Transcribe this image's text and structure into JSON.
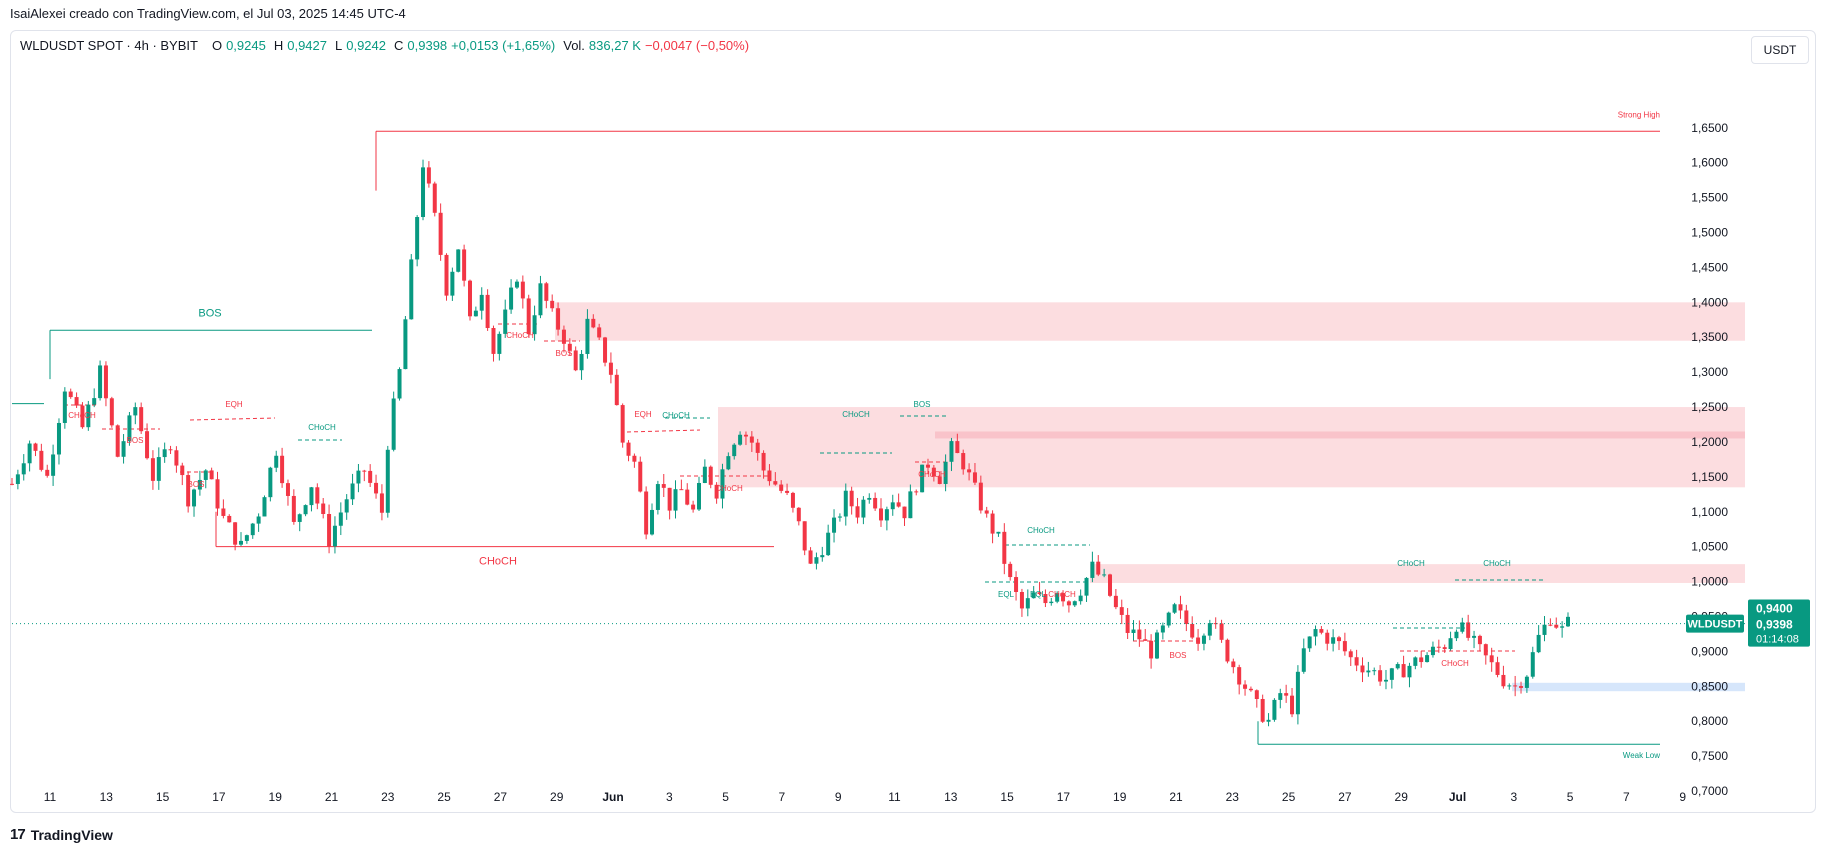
{
  "header": {
    "attribution": "IsaiAlexei creado con TradingView.com, el Jul 03, 2025 14:45 UTC-4"
  },
  "legend": {
    "symbol": "WLDUSDT SPOT · 4h · BYBIT",
    "o_label": "O",
    "o_value": "0,9245",
    "h_label": "H",
    "h_value": "0,9427",
    "l_label": "L",
    "l_value": "0,9242",
    "c_label": "C",
    "c_value": "0,9398",
    "change": "+0,0153 (+1,65%)",
    "vol_label": "Vol.",
    "vol_value": "836,27 K",
    "vol_change": "−0,0047 (−0,50%)"
  },
  "currency_button": "USDT",
  "footer": {
    "logo_text": "TradingView",
    "logo_mark": "17"
  },
  "colors": {
    "up": "#089981",
    "down": "#f23645",
    "zone_supply": "#fcdde0",
    "zone_demand": "#d6e6fb",
    "grid_text": "#131722"
  },
  "chart_data": {
    "type": "candlestick",
    "symbol": "WLDUSDT",
    "timeframe": "4h",
    "yaxis": {
      "range": [
        0.69,
        1.75
      ],
      "ticks": [
        "0,7000",
        "0,7500",
        "0,8000",
        "0,8500",
        "0,9000",
        "0,9500",
        "1,0000",
        "1,0500",
        "1,1000",
        "1,1500",
        "1,2000",
        "1,2500",
        "1,3000",
        "1,3500",
        "1,4000",
        "1,4500",
        "1,5000",
        "1,5500",
        "1,6000",
        "1,6500"
      ]
    },
    "xaxis": {
      "ticks": [
        "11",
        "13",
        "15",
        "17",
        "19",
        "21",
        "23",
        "25",
        "27",
        "29",
        "Jun",
        "3",
        "5",
        "7",
        "9",
        "11",
        "13",
        "15",
        "17",
        "19",
        "21",
        "23",
        "25",
        "27",
        "29",
        "Jul",
        "3",
        "5",
        "7",
        "9"
      ]
    },
    "price_labels": {
      "current_name": "WLDUSDT",
      "current_price": "0,9398",
      "countdown": "01:14:08",
      "high_marker": "0,9400"
    },
    "close_path": [
      [
        0,
        1.14
      ],
      [
        3,
        1.2
      ],
      [
        6,
        1.15
      ],
      [
        9,
        1.28
      ],
      [
        12,
        1.22
      ],
      [
        15,
        1.3
      ],
      [
        18,
        1.18
      ],
      [
        21,
        1.25
      ],
      [
        24,
        1.15
      ],
      [
        27,
        1.2
      ],
      [
        30,
        1.12
      ],
      [
        33,
        1.16
      ],
      [
        36,
        1.09
      ],
      [
        39,
        1.05
      ],
      [
        42,
        1.1
      ],
      [
        45,
        1.19
      ],
      [
        48,
        1.08
      ],
      [
        51,
        1.14
      ],
      [
        54,
        1.06
      ],
      [
        57,
        1.12
      ],
      [
        60,
        1.16
      ],
      [
        63,
        1.1
      ],
      [
        64,
        1.2
      ],
      [
        66,
        1.3
      ],
      [
        68,
        1.45
      ],
      [
        70,
        1.6
      ],
      [
        72,
        1.52
      ],
      [
        74,
        1.42
      ],
      [
        76,
        1.48
      ],
      [
        78,
        1.37
      ],
      [
        80,
        1.42
      ],
      [
        82,
        1.33
      ],
      [
        84,
        1.38
      ],
      [
        86,
        1.44
      ],
      [
        88,
        1.36
      ],
      [
        90,
        1.42
      ],
      [
        92,
        1.38
      ],
      [
        94,
        1.35
      ],
      [
        96,
        1.3
      ],
      [
        98,
        1.37
      ],
      [
        100,
        1.34
      ],
      [
        102,
        1.3
      ],
      [
        104,
        1.2
      ],
      [
        106,
        1.17
      ],
      [
        108,
        1.08
      ],
      [
        110,
        1.15
      ],
      [
        112,
        1.11
      ],
      [
        114,
        1.13
      ],
      [
        116,
        1.1
      ],
      [
        118,
        1.16
      ],
      [
        120,
        1.13
      ],
      [
        122,
        1.19
      ],
      [
        124,
        1.22
      ],
      [
        126,
        1.2
      ],
      [
        128,
        1.16
      ],
      [
        130,
        1.14
      ],
      [
        132,
        1.12
      ],
      [
        134,
        1.08
      ],
      [
        136,
        1.02
      ],
      [
        138,
        1.05
      ],
      [
        140,
        1.08
      ],
      [
        142,
        1.12
      ],
      [
        144,
        1.1
      ],
      [
        146,
        1.13
      ],
      [
        148,
        1.1
      ],
      [
        150,
        1.12
      ],
      [
        152,
        1.1
      ],
      [
        154,
        1.14
      ],
      [
        156,
        1.17
      ],
      [
        158,
        1.15
      ],
      [
        160,
        1.19
      ],
      [
        162,
        1.17
      ],
      [
        164,
        1.13
      ],
      [
        166,
        1.09
      ],
      [
        168,
        1.06
      ],
      [
        170,
        1.0
      ],
      [
        172,
        0.96
      ],
      [
        174,
        0.98
      ],
      [
        176,
        0.97
      ],
      [
        178,
        0.99
      ],
      [
        180,
        0.97
      ],
      [
        182,
        0.99
      ],
      [
        184,
        1.02
      ],
      [
        186,
        1.0
      ],
      [
        188,
        0.96
      ],
      [
        190,
        0.93
      ],
      [
        192,
        0.92
      ],
      [
        194,
        0.9
      ],
      [
        196,
        0.93
      ],
      [
        198,
        0.96
      ],
      [
        200,
        0.94
      ],
      [
        202,
        0.92
      ],
      [
        204,
        0.95
      ],
      [
        206,
        0.91
      ],
      [
        208,
        0.88
      ],
      [
        210,
        0.85
      ],
      [
        212,
        0.82
      ],
      [
        214,
        0.8
      ],
      [
        216,
        0.84
      ],
      [
        218,
        0.82
      ],
      [
        220,
        0.9
      ],
      [
        222,
        0.93
      ],
      [
        224,
        0.92
      ],
      [
        226,
        0.91
      ],
      [
        228,
        0.89
      ],
      [
        230,
        0.88
      ],
      [
        232,
        0.87
      ],
      [
        234,
        0.86
      ],
      [
        236,
        0.87
      ],
      [
        238,
        0.88
      ],
      [
        240,
        0.89
      ],
      [
        242,
        0.9
      ],
      [
        244,
        0.91
      ],
      [
        246,
        0.94
      ],
      [
        248,
        0.92
      ],
      [
        250,
        0.9
      ],
      [
        252,
        0.88
      ],
      [
        254,
        0.86
      ],
      [
        256,
        0.85
      ],
      [
        258,
        0.87
      ],
      [
        260,
        0.92
      ],
      [
        262,
        0.95
      ],
      [
        264,
        0.93
      ],
      [
        265,
        0.94
      ]
    ],
    "horizontal_levels": [
      {
        "label": "Strong High",
        "price": 1.645,
        "color": "#f23645"
      },
      {
        "label": "Weak Low",
        "price": 0.767,
        "color": "#089981"
      },
      {
        "label": "BOS",
        "price": 1.36,
        "color": "#089981"
      },
      {
        "label": "CHoCH",
        "price": 1.05,
        "color": "#f23645"
      }
    ],
    "zones": [
      {
        "top": 1.4,
        "bottom": 1.345,
        "kind": "supply"
      },
      {
        "top": 1.25,
        "bottom": 1.135,
        "kind": "supply"
      },
      {
        "top": 1.025,
        "bottom": 0.998,
        "kind": "supply"
      },
      {
        "top": 0.855,
        "bottom": 0.843,
        "kind": "demand"
      }
    ],
    "structure_labels": [
      {
        "text": "CHoCH",
        "color": "#f23645"
      },
      {
        "text": "BOS",
        "color": "#f23645"
      },
      {
        "text": "BOS",
        "color": "#f23645"
      },
      {
        "text": "EQH",
        "color": "#f23645"
      },
      {
        "text": "CHoCH",
        "color": "#089981"
      },
      {
        "text": "CHoCH",
        "color": "#f23645"
      },
      {
        "text": "BOS",
        "color": "#f23645"
      },
      {
        "text": "EQH",
        "color": "#f23645"
      },
      {
        "text": "CHoCH",
        "color": "#089981"
      },
      {
        "text": "CHoCH",
        "color": "#f23645"
      },
      {
        "text": "CHoCH",
        "color": "#089981"
      },
      {
        "text": "BOS",
        "color": "#089981"
      },
      {
        "text": "CHoCH",
        "color": "#f23645"
      },
      {
        "text": "CHoCH",
        "color": "#089981"
      },
      {
        "text": "EQL",
        "color": "#089981"
      },
      {
        "text": "EQL",
        "color": "#089981"
      },
      {
        "text": "CHoCH",
        "color": "#f23645"
      },
      {
        "text": "BOS",
        "color": "#f23645"
      },
      {
        "text": "CHoCH",
        "color": "#089981"
      },
      {
        "text": "CHoCH",
        "color": "#089981"
      },
      {
        "text": "CHoCH",
        "color": "#f23645"
      }
    ]
  }
}
